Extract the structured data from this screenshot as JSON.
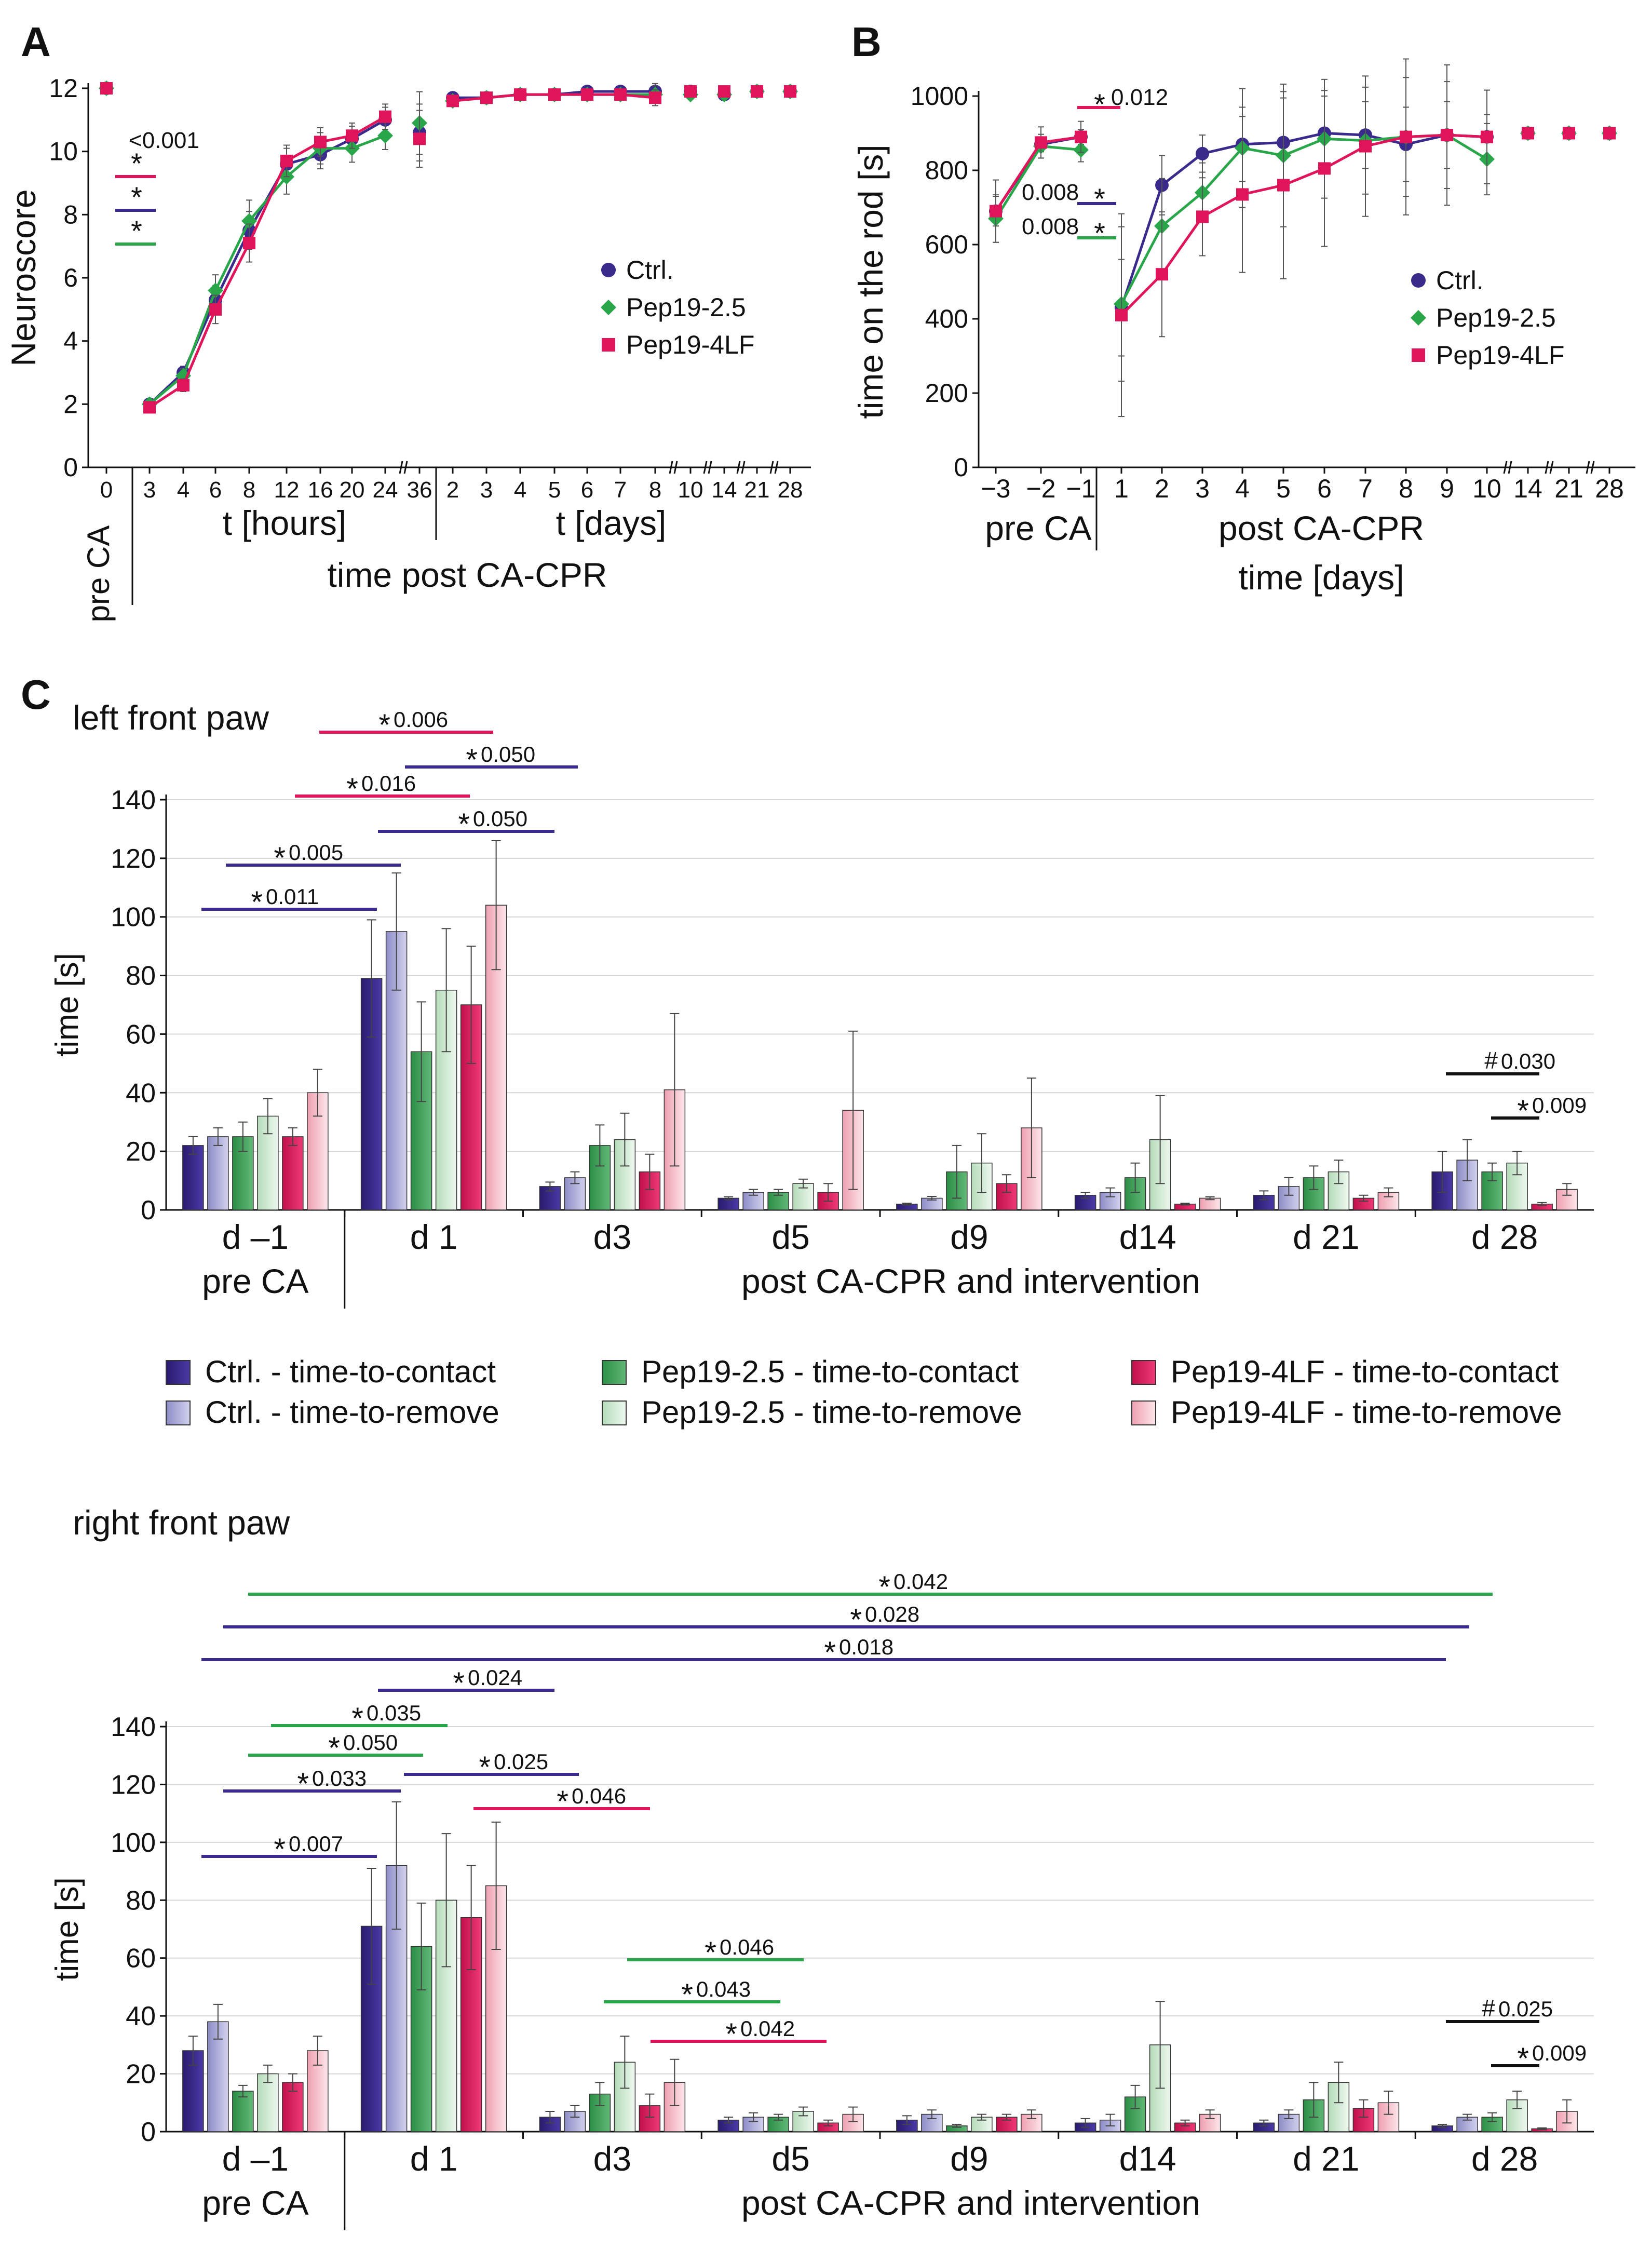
{
  "colors": {
    "ctrl": "#3a2a8c",
    "ctrl_light": "#aaa9d8",
    "pep25": "#2aa64a",
    "pep25_light": "#cbe8cf",
    "pep4lf": "#e0145a",
    "pep4lf_light": "#f6c4cf",
    "black": "#111111",
    "grid": "#d6d6d6"
  },
  "panels": {
    "A": "A",
    "B": "B",
    "C": "C"
  },
  "chart_data": [
    {
      "id": "A",
      "type": "line",
      "ylabel": "Neuroscore",
      "ylim": [
        0,
        12
      ],
      "yticks": [
        "0",
        "2",
        "4",
        "6",
        "8",
        "10",
        "12"
      ],
      "pre_label": "pre CA",
      "group_labels": {
        "hours": "t [hours]",
        "days": "t [days]"
      },
      "xlabel": "time post CA-CPR",
      "xticks": [
        "0",
        "3",
        "4",
        "6",
        "8",
        "12",
        "16",
        "20",
        "24",
        "36",
        "2",
        "3",
        "4",
        "5",
        "6",
        "7",
        "8",
        "10",
        "14",
        "21",
        "28"
      ],
      "legend": [
        "Ctrl.",
        "Pep19-2.5",
        "Pep19-4LF"
      ],
      "annotations": {
        "pvalue": "<0.001",
        "stars": [
          "*",
          "*",
          "*"
        ]
      },
      "series": [
        {
          "name": "Ctrl.",
          "values": [
            12,
            2.0,
            3.0,
            5.3,
            7.5,
            9.6,
            9.9,
            10.4,
            11.0,
            10.6,
            11.7,
            11.7,
            11.8,
            11.8,
            11.9,
            11.9,
            11.9,
            11.9,
            11.8,
            11.9,
            11.9
          ]
        },
        {
          "name": "Pep19-2.5",
          "values": [
            12,
            2.0,
            2.9,
            5.6,
            7.8,
            9.2,
            10.1,
            10.1,
            10.5,
            10.9,
            11.6,
            11.7,
            11.8,
            11.8,
            11.8,
            11.8,
            11.8,
            11.8,
            11.8,
            11.9,
            11.9
          ]
        },
        {
          "name": "Pep19-4LF",
          "values": [
            12,
            1.9,
            2.6,
            5.0,
            7.1,
            9.7,
            10.3,
            10.5,
            11.1,
            10.4,
            11.6,
            11.7,
            11.8,
            11.8,
            11.8,
            11.8,
            11.7,
            11.9,
            11.9,
            11.9,
            11.9
          ]
        }
      ]
    },
    {
      "id": "B",
      "type": "line",
      "ylabel": "time on the rod [s]",
      "ylim": [
        0,
        1000
      ],
      "yticks": [
        "0",
        "200",
        "400",
        "600",
        "800",
        "1000"
      ],
      "pre_label": "pre CA",
      "post_label": "post CA-CPR",
      "xlabel": "time [days]",
      "xticks": [
        "−3",
        "−2",
        "−1",
        "1",
        "2",
        "3",
        "4",
        "5",
        "6",
        "7",
        "8",
        "9",
        "10",
        "14",
        "21",
        "28"
      ],
      "legend": [
        "Ctrl.",
        "Pep19-2.5",
        "Pep19-4LF"
      ],
      "annotations": {
        "p1": "0.012",
        "p2": "0.008",
        "p3": "0.008",
        "star": "*"
      },
      "series": [
        {
          "name": "Ctrl.",
          "values": [
            690,
            870,
            890,
            430,
            760,
            845,
            870,
            875,
            900,
            895,
            870,
            895,
            890,
            900,
            900,
            900
          ]
        },
        {
          "name": "Pep19-2.5",
          "values": [
            670,
            865,
            855,
            440,
            650,
            740,
            860,
            840,
            885,
            880,
            890,
            895,
            830,
            900,
            900,
            900
          ]
        },
        {
          "name": "Pep19-4LF",
          "values": [
            690,
            875,
            890,
            410,
            520,
            675,
            735,
            760,
            805,
            865,
            890,
            895,
            890,
            900,
            900,
            900
          ]
        }
      ]
    },
    {
      "id": "C-left",
      "type": "bar",
      "title": "left front paw",
      "ylabel": "time [s]",
      "ylim": [
        0,
        140
      ],
      "yticks": [
        "0",
        "20",
        "40",
        "60",
        "80",
        "100",
        "120",
        "140"
      ],
      "categories": [
        "d –1",
        "d 1",
        "d3",
        "d5",
        "d9",
        "d14",
        "d 21",
        "d 28"
      ],
      "pre_label": "pre CA",
      "post_label": "post CA-CPR and intervention",
      "series": [
        {
          "name": "Ctrl. - time-to-contact",
          "values": [
            22,
            79,
            8,
            4,
            2,
            5,
            5,
            13
          ]
        },
        {
          "name": "Ctrl. - time-to-remove",
          "values": [
            25,
            95,
            11,
            6,
            4,
            6,
            8,
            17
          ]
        },
        {
          "name": "Pep19-2.5 - time-to-contact",
          "values": [
            25,
            54,
            22,
            6,
            13,
            11,
            11,
            13
          ]
        },
        {
          "name": "Pep19-2.5 - time-to-remove",
          "values": [
            32,
            75,
            24,
            9,
            16,
            24,
            13,
            16
          ]
        },
        {
          "name": "Pep19-4LF - time-to-contact",
          "values": [
            25,
            70,
            13,
            6,
            9,
            2,
            4,
            2
          ]
        },
        {
          "name": "Pep19-4LF - time-to-remove",
          "values": [
            40,
            104,
            41,
            34,
            28,
            4,
            6,
            7
          ]
        }
      ],
      "significance": [
        {
          "label": "0.006",
          "mark": "*"
        },
        {
          "label": "0.050",
          "mark": "*"
        },
        {
          "label": "0.016",
          "mark": "*"
        },
        {
          "label": "0.050",
          "mark": "*"
        },
        {
          "label": "0.005",
          "mark": "*"
        },
        {
          "label": "0.011",
          "mark": "*"
        },
        {
          "label": "0.030",
          "mark": "#"
        },
        {
          "label": "0.009",
          "mark": "*"
        }
      ]
    },
    {
      "id": "C-right",
      "type": "bar",
      "title": "right front paw",
      "ylabel": "time [s]",
      "ylim": [
        0,
        140
      ],
      "yticks": [
        "0",
        "20",
        "40",
        "60",
        "80",
        "100",
        "120",
        "140"
      ],
      "categories": [
        "d –1",
        "d 1",
        "d3",
        "d5",
        "d9",
        "d14",
        "d 21",
        "d 28"
      ],
      "pre_label": "pre CA",
      "post_label": "post CA-CPR and intervention",
      "series": [
        {
          "name": "Ctrl. - time-to-contact",
          "values": [
            28,
            71,
            5,
            4,
            4,
            3,
            3,
            2
          ]
        },
        {
          "name": "Ctrl. - time-to-remove",
          "values": [
            38,
            92,
            7,
            5,
            6,
            4,
            6,
            5
          ]
        },
        {
          "name": "Pep19-2.5 - time-to-contact",
          "values": [
            14,
            64,
            13,
            5,
            2,
            12,
            11,
            5
          ]
        },
        {
          "name": "Pep19-2.5 - time-to-remove",
          "values": [
            20,
            80,
            24,
            7,
            5,
            30,
            17,
            11
          ]
        },
        {
          "name": "Pep19-4LF - time-to-contact",
          "values": [
            17,
            74,
            9,
            3,
            5,
            3,
            8,
            1
          ]
        },
        {
          "name": "Pep19-4LF - time-to-remove",
          "values": [
            28,
            85,
            17,
            6,
            6,
            6,
            10,
            7
          ]
        }
      ],
      "significance": [
        {
          "label": "0.042",
          "mark": "*"
        },
        {
          "label": "0.028",
          "mark": "*"
        },
        {
          "label": "0.018",
          "mark": "*"
        },
        {
          "label": "0.024",
          "mark": "*"
        },
        {
          "label": "0.035",
          "mark": "*"
        },
        {
          "label": "0.050",
          "mark": "*"
        },
        {
          "label": "0.025",
          "mark": "*"
        },
        {
          "label": "0.033",
          "mark": "*"
        },
        {
          "label": "0.046",
          "mark": "*"
        },
        {
          "label": "0.007",
          "mark": "*"
        },
        {
          "label": "0.046",
          "mark": "*"
        },
        {
          "label": "0.043",
          "mark": "*"
        },
        {
          "label": "0.042",
          "mark": "*"
        },
        {
          "label": "0.025",
          "mark": "#"
        },
        {
          "label": "0.009",
          "mark": "*"
        }
      ]
    }
  ],
  "legend_c": [
    "Ctrl. - time-to-contact",
    "Ctrl. - time-to-remove",
    "Pep19-2.5 - time-to-contact",
    "Pep19-2.5 - time-to-remove",
    "Pep19-4LF - time-to-contact",
    "Pep19-4LF - time-to-remove"
  ]
}
